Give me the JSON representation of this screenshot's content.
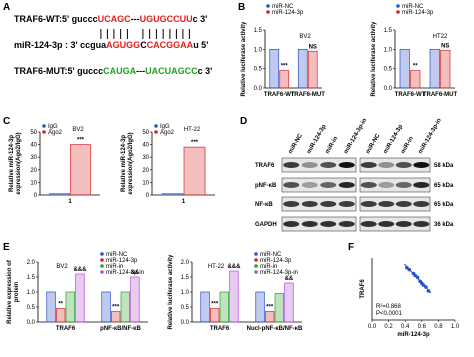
{
  "panel_labels": [
    "A",
    "B",
    "C",
    "D",
    "E",
    "F"
  ],
  "sequence_panel": {
    "lines": [
      {
        "segments": [
          {
            "text": "TRAF6-WT:5' guccc",
            "color": "#000000"
          },
          {
            "text": "UCAGC",
            "color": "#e02020"
          },
          {
            "text": "---",
            "color": "#000000"
          },
          {
            "text": "UGUGCCUU",
            "color": "#e02020"
          },
          {
            "text": "c 3'",
            "color": "#000000"
          }
        ]
      },
      {
        "segments": [
          {
            "text": "miR-124-3p : 3' ccgua",
            "color": "#000000"
          },
          {
            "text": "AGUGG",
            "color": "#e02020"
          },
          {
            "text": "C",
            "color": "#000000"
          },
          {
            "text": "CACGGAA",
            "color": "#e02020"
          },
          {
            "text": "u 5'",
            "color": "#000000"
          }
        ]
      },
      {
        "segments": [
          {
            "text": "TRAF6-MUT:5' guccc",
            "color": "#000000"
          },
          {
            "text": "CAUGA",
            "color": "#20a020"
          },
          {
            "text": "---",
            "color": "#000000"
          },
          {
            "text": "UACUAGCC",
            "color": "#20a020"
          },
          {
            "text": "c 3'",
            "color": "#000000"
          }
        ]
      }
    ]
  },
  "blot": {
    "columns": [
      "miR-NC",
      "miR-124-3p",
      "miR-in",
      "miR-124-3p-in",
      "miR-NC",
      "miR-124-3p",
      "miR-in",
      "miR-124-3p-in"
    ],
    "rows": [
      {
        "name": "TRAF6",
        "size": "58 kDa"
      },
      {
        "name": "pNF-κB",
        "size": "65 kDa"
      },
      {
        "name": "NF-κB",
        "size": "65 kDa"
      },
      {
        "name": "GAPDH",
        "size": "36 kDa"
      }
    ]
  },
  "chart_data": [
    {
      "type": "bar",
      "title": "BV2",
      "ylabel": [
        "Relative luciferase activity"
      ],
      "categories": [
        "TRAF6-WT",
        "TRAF6-MUT"
      ],
      "series": [
        {
          "name": "miR-NC",
          "color": "#2b50c8",
          "values": [
            1.0,
            1.0
          ]
        },
        {
          "name": "miR-124-3p",
          "color": "#d62728",
          "values": [
            0.45,
            0.95
          ]
        }
      ],
      "annotations": [
        [
          "***"
        ],
        [
          "NS"
        ]
      ],
      "ylim": [
        0,
        1.5
      ],
      "yticks": [
        {
          "value": 0,
          "label": "0.0"
        },
        0.5,
        {
          "value": 1,
          "label": "1.0"
        },
        1.5
      ],
      "legend": "upper left"
    },
    {
      "type": "bar",
      "title": "HT22",
      "ylabel": [
        "Relative luciferase activity"
      ],
      "categories": [
        "TRAF6-WT",
        "TRAF6-MUT"
      ],
      "series": [
        {
          "name": "miR-NC",
          "color": "#2b50c8",
          "values": [
            1.0,
            1.0
          ]
        },
        {
          "name": "miR-124-3p",
          "color": "#d62728",
          "values": [
            0.45,
            0.97
          ]
        }
      ],
      "annotations": [
        [
          "**"
        ],
        [
          "NS"
        ]
      ],
      "ylim": [
        0,
        1.5
      ],
      "yticks": [
        {
          "value": 0,
          "label": "0.0"
        },
        0.5,
        {
          "value": 1,
          "label": "1.0"
        },
        1.5
      ],
      "legend": "upper left"
    },
    {
      "type": "bar",
      "title": "BV2",
      "ylabel": [
        "Relative miR-124-3p",
        "expression(Ago2/IgG)"
      ],
      "categories": [
        "1"
      ],
      "series": [
        {
          "name": "IgG",
          "color": "#2b50c8",
          "values": [
            1
          ]
        },
        {
          "name": "Ago2",
          "color": "#d62728",
          "values": [
            40
          ]
        }
      ],
      "annotations": [
        [
          "***"
        ]
      ],
      "ylim": [
        0,
        50
      ],
      "yticks": [
        0,
        10,
        20,
        30,
        40,
        50
      ],
      "legend": "upper left"
    },
    {
      "type": "bar",
      "title": "HT-22",
      "ylabel": [
        "Relative miR-124-3p",
        "expression(Ago2/IgG)"
      ],
      "categories": [
        "1"
      ],
      "series": [
        {
          "name": "IgG",
          "color": "#2b50c8",
          "values": [
            1
          ]
        },
        {
          "name": "Ago2",
          "color": "#d62728",
          "values": [
            38
          ]
        }
      ],
      "annotations": [
        [
          "***"
        ]
      ],
      "ylim": [
        0,
        50
      ],
      "yticks": [
        0,
        10,
        20,
        30,
        40,
        50
      ],
      "legend": "upper left"
    },
    {
      "type": "bar",
      "title": "BV2",
      "ylabel": [
        "Relative expression of",
        "protein"
      ],
      "categories": [
        "TRAF6",
        "pNF-κB/NF-κB"
      ],
      "series": [
        {
          "name": "miR-NC",
          "color": "#2b50c8",
          "values": [
            1.0,
            1.0
          ]
        },
        {
          "name": "miR-124-3p",
          "color": "#d62728",
          "values": [
            0.45,
            0.35
          ]
        },
        {
          "name": "miR-in",
          "color": "#2ca02c",
          "values": [
            1.0,
            1.0
          ]
        },
        {
          "name": "miR-124-3p-in",
          "color": "#b24fd6",
          "values": [
            1.6,
            1.5
          ]
        }
      ],
      "annotations": [
        [
          "**",
          "&&&"
        ],
        [
          "***",
          "&&"
        ]
      ],
      "ylim": [
        0,
        2
      ],
      "yticks": [
        {
          "value": 0,
          "label": "0.0"
        },
        0.5,
        {
          "value": 1,
          "label": "1.0"
        },
        1.5,
        {
          "value": 2,
          "label": "2.0"
        }
      ],
      "legend": "upper right"
    },
    {
      "type": "bar",
      "title": "HT-22",
      "ylabel": [
        "Relative luciferase activity"
      ],
      "categories": [
        "TRAF6",
        "Nucl-pNF-κB/NF-κB"
      ],
      "series": [
        {
          "name": "miR-NC",
          "color": "#2b50c8",
          "values": [
            1.0,
            1.0
          ]
        },
        {
          "name": "miR-124-3p",
          "color": "#d62728",
          "values": [
            0.45,
            0.35
          ]
        },
        {
          "name": "miR-in",
          "color": "#2ca02c",
          "values": [
            1.0,
            0.95
          ]
        },
        {
          "name": "miR-124-3p-in",
          "color": "#b24fd6",
          "values": [
            1.7,
            1.3
          ]
        }
      ],
      "annotations": [
        [
          "***",
          "&&&"
        ],
        [
          "***",
          "&&"
        ]
      ],
      "ylim": [
        0,
        2
      ],
      "yticks": [
        {
          "value": 0,
          "label": "0.0"
        },
        0.5,
        {
          "value": 1,
          "label": "1.0"
        },
        1.5,
        {
          "value": 2,
          "label": "2.0"
        }
      ],
      "legend": "upper right"
    },
    {
      "type": "scatter",
      "xlabel": "miR-124-3p",
      "ylabel": [
        "TRAF6"
      ],
      "color": "#2b50c8",
      "x": [
        0.42,
        0.45,
        0.5,
        0.52,
        0.55,
        0.58,
        0.6,
        0.62,
        0.65,
        0.68
      ],
      "values": [
        1.35,
        1.3,
        1.2,
        1.15,
        1.1,
        1.0,
        0.95,
        0.9,
        0.85,
        0.75
      ],
      "annotations": [
        "R²=0.868",
        "P<0.0001"
      ],
      "xlim": [
        0,
        1
      ],
      "xticks": [
        {
          "value": 0,
          "label": "0.0"
        },
        0.2,
        0.4,
        0.6,
        0.8,
        {
          "value": 1,
          "label": "1.0"
        }
      ],
      "ylim": [
        0,
        1.6
      ]
    }
  ]
}
